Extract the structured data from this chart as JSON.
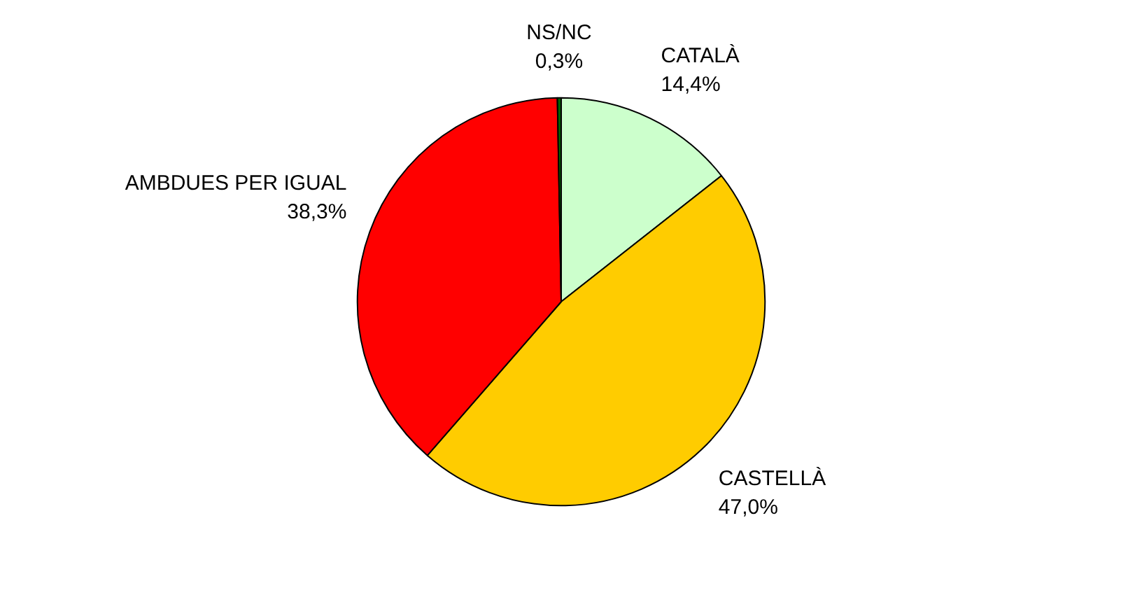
{
  "chart_data": {
    "type": "pie",
    "categories": [
      "CATALÀ",
      "CASTELLÀ",
      "AMBDUES PER IGUAL",
      "NS/NC"
    ],
    "values": [
      14.4,
      47.0,
      38.3,
      0.3
    ],
    "colors": [
      "#ccffcc",
      "#ffcc00",
      "#ff0000",
      "#006600"
    ],
    "value_labels": [
      "14,4%",
      "47,0%",
      "38,3%",
      "0,3%"
    ],
    "legend": false
  }
}
